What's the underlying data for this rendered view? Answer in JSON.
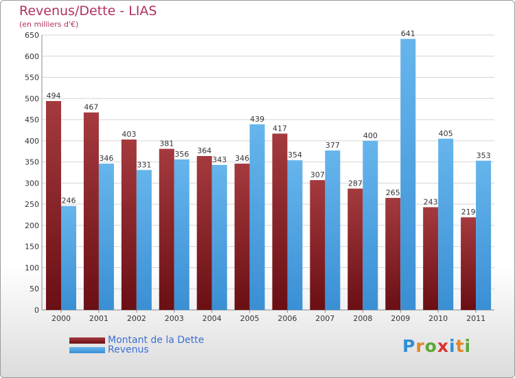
{
  "title": "Revenus/Dette - LIAS",
  "subtitle": "(en milliers d'€)",
  "logo": {
    "text": "Proxiti",
    "letter_colors": [
      "#2f8fd8",
      "#e0872a",
      "#5aa832",
      "#d8322f",
      "#2f8fd8",
      "#e0872a",
      "#5aa832"
    ]
  },
  "colors": {
    "dette": "#6a0f14",
    "dette_light": "#a43a3e",
    "revenus": "#3a8fd4",
    "revenus_light": "#66b5ec",
    "grid": "#d4d4d4",
    "axis_text": "#333333"
  },
  "chart_data": {
    "type": "bar",
    "categories": [
      "2000",
      "2001",
      "2002",
      "2003",
      "2004",
      "2005",
      "2006",
      "2007",
      "2008",
      "2009",
      "2010",
      "2011"
    ],
    "series": [
      {
        "name": "Montant de la Dette",
        "values": [
          494,
          467,
          403,
          381,
          364,
          346,
          417,
          307,
          287,
          265,
          243,
          219
        ]
      },
      {
        "name": "Revenus",
        "values": [
          246,
          346,
          331,
          356,
          343,
          439,
          354,
          377,
          400,
          641,
          405,
          353
        ]
      }
    ],
    "title": "Revenus/Dette - LIAS",
    "ylabel": "(en milliers d'€)",
    "ylim": [
      0,
      650
    ],
    "ytick_step": 50,
    "grid": true,
    "legend": "bottom-left"
  }
}
